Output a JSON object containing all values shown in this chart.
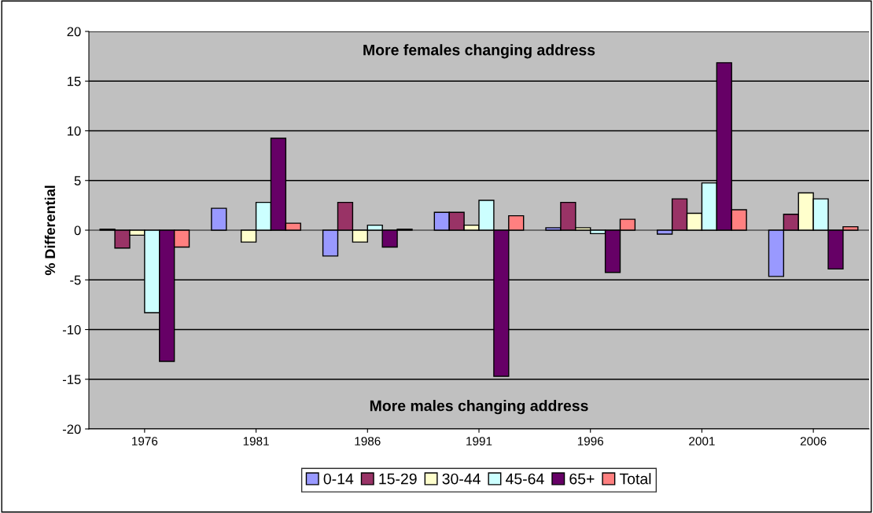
{
  "chart_data": {
    "type": "bar",
    "ylabel": "% Differential",
    "categories": [
      "1976",
      "1981",
      "1986",
      "1991",
      "1996",
      "2001",
      "2006"
    ],
    "series": [
      {
        "name": "0-14",
        "color": "#9999ff",
        "values": [
          0.1,
          2.2,
          -2.6,
          1.8,
          0.25,
          -0.4,
          -4.65
        ]
      },
      {
        "name": "15-29",
        "color": "#993366",
        "values": [
          -1.8,
          null,
          2.8,
          1.8,
          2.8,
          3.15,
          1.6
        ]
      },
      {
        "name": "30-44",
        "color": "#ffffcc",
        "values": [
          -0.5,
          -1.2,
          -1.2,
          0.5,
          0.25,
          1.7,
          3.75
        ]
      },
      {
        "name": "45-64",
        "color": "#ccffff",
        "values": [
          -8.3,
          2.8,
          0.5,
          3.0,
          -0.35,
          4.75,
          3.15
        ]
      },
      {
        "name": "65+",
        "color": "#660066",
        "values": [
          -13.2,
          9.25,
          -1.7,
          -14.7,
          -4.25,
          16.85,
          -3.9
        ]
      },
      {
        "name": "Total",
        "color": "#ff8080",
        "values": [
          -1.7,
          0.7,
          0.1,
          1.45,
          1.1,
          2.05,
          0.35
        ]
      }
    ],
    "ylim": [
      -20,
      20
    ],
    "yticks": [
      -20,
      -15,
      -10,
      -5,
      0,
      5,
      10,
      15,
      20
    ],
    "grid": "y",
    "legend": "bottom",
    "annotations": [
      "More females changing address",
      "More males changing address"
    ]
  }
}
